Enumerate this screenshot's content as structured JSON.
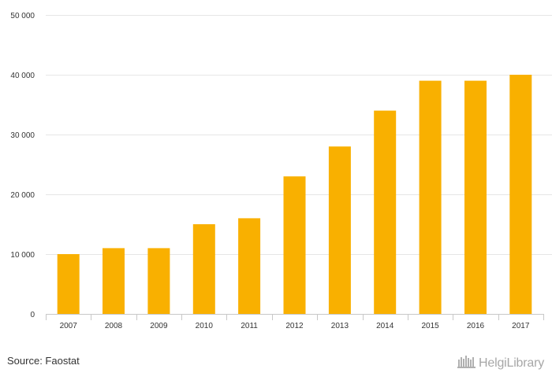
{
  "chart_data": {
    "type": "bar",
    "categories": [
      "2007",
      "2008",
      "2009",
      "2010",
      "2011",
      "2012",
      "2013",
      "2014",
      "2015",
      "2016",
      "2017"
    ],
    "values": [
      10000,
      11000,
      11000,
      15000,
      16000,
      23000,
      28000,
      34000,
      39000,
      39000,
      40000
    ],
    "ylim": [
      0,
      50000
    ],
    "yticks": [
      0,
      10000,
      20000,
      30000,
      40000,
      50000
    ],
    "ytick_labels": [
      "0",
      "10 000",
      "20 000",
      "30 000",
      "40 000",
      "50 000"
    ],
    "grid": true,
    "legend": "none",
    "bar_color": "#f9b000",
    "title": "",
    "xlabel": "",
    "ylabel": ""
  },
  "footer": {
    "source": "Source: Faostat",
    "brand": "HelgiLibrary"
  },
  "colors": {
    "bar": "#f9b000",
    "grid": "#e6e6e6",
    "axis": "#c8c8c8",
    "text": "#333333",
    "brand": "#a7a7a7"
  }
}
